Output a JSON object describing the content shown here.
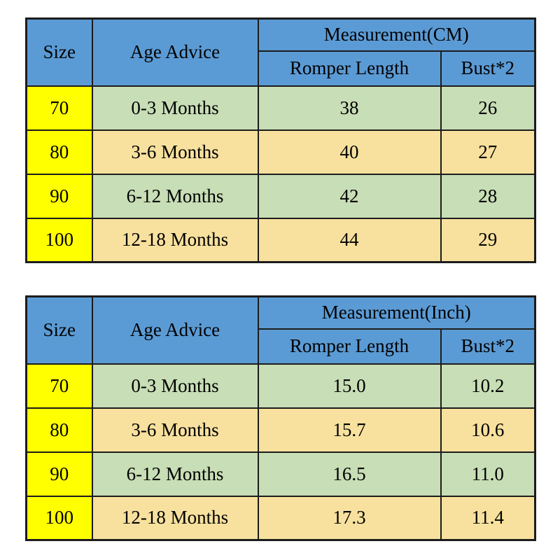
{
  "colors": {
    "header_blue": "#5b9bd5",
    "size_column_yellow": "#ffff00",
    "row_green": "#c8deb6",
    "row_tan": "#f8e19e",
    "border": "#1c1c1c",
    "text": "#000000",
    "background": "#ffffff"
  },
  "chart_data": [
    {
      "type": "table",
      "title": "Measurement(CM)",
      "columns": [
        "Size",
        "Age Advice",
        "Romper Length",
        "Bust*2"
      ],
      "rows": [
        [
          "70",
          "0-3 Months",
          "38",
          "26"
        ],
        [
          "80",
          "3-6 Months",
          "40",
          "27"
        ],
        [
          "90",
          "6-12 Months",
          "42",
          "28"
        ],
        [
          "100",
          "12-18 Months",
          "44",
          "29"
        ]
      ]
    },
    {
      "type": "table",
      "title": "Measurement(Inch)",
      "columns": [
        "Size",
        "Age Advice",
        "Romper Length",
        "Bust*2"
      ],
      "rows": [
        [
          "70",
          "0-3 Months",
          "15.0",
          "10.2"
        ],
        [
          "80",
          "3-6 Months",
          "15.7",
          "10.6"
        ],
        [
          "90",
          "6-12 Months",
          "16.5",
          "11.0"
        ],
        [
          "100",
          "12-18 Months",
          "17.3",
          "11.4"
        ]
      ]
    }
  ],
  "tables": [
    {
      "header": {
        "size": "Size",
        "age": "Age Advice",
        "measurement": "Measurement(CM)",
        "romper": "Romper Length",
        "bust": "Bust*2"
      },
      "rows": [
        {
          "size": "70",
          "age": "0-3 Months",
          "romper": "38",
          "bust": "26"
        },
        {
          "size": "80",
          "age": "3-6 Months",
          "romper": "40",
          "bust": "27"
        },
        {
          "size": "90",
          "age": "6-12 Months",
          "romper": "42",
          "bust": "28"
        },
        {
          "size": "100",
          "age": "12-18 Months",
          "romper": "44",
          "bust": "29"
        }
      ]
    },
    {
      "header": {
        "size": "Size",
        "age": "Age Advice",
        "measurement": "Measurement(Inch)",
        "romper": "Romper Length",
        "bust": "Bust*2"
      },
      "rows": [
        {
          "size": "70",
          "age": "0-3 Months",
          "romper": "15.0",
          "bust": "10.2"
        },
        {
          "size": "80",
          "age": "3-6 Months",
          "romper": "15.7",
          "bust": "10.6"
        },
        {
          "size": "90",
          "age": "6-12 Months",
          "romper": "16.5",
          "bust": "11.0"
        },
        {
          "size": "100",
          "age": "12-18 Months",
          "romper": "17.3",
          "bust": "11.4"
        }
      ]
    }
  ]
}
